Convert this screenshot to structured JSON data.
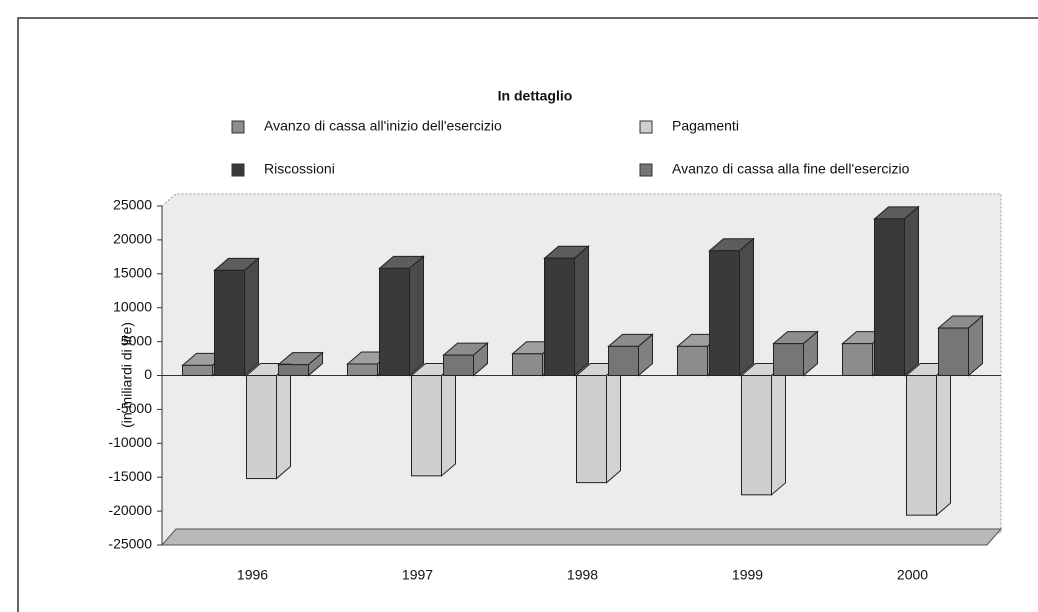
{
  "chart_data": {
    "type": "bar3d",
    "title": "In dettaglio",
    "ylabel": "(in miliardi di lire)",
    "categories": [
      "1996",
      "1997",
      "1998",
      "1999",
      "2000"
    ],
    "series": [
      {
        "name": "Avanzo di cassa all'inizio dell'esercizio",
        "color": "#8c8c8c",
        "values": [
          1500,
          1700,
          3200,
          4300,
          4700
        ]
      },
      {
        "name": "Pagamenti",
        "color": "#cfcfcf",
        "values": [
          -15200,
          -14800,
          -15800,
          -17600,
          -20600
        ]
      },
      {
        "name": "Riscossioni",
        "color": "#3a3a3a",
        "values": [
          15500,
          15800,
          17300,
          18400,
          23100
        ]
      },
      {
        "name": "Avanzo di cassa alla fine dell'esercizio",
        "color": "#767676",
        "values": [
          1600,
          3000,
          4300,
          4700,
          7000
        ]
      }
    ],
    "bar_order": [
      0,
      2,
      1,
      3
    ],
    "ylim": [
      -25000,
      25000
    ],
    "yticks": [
      -25000,
      -20000,
      -15000,
      -10000,
      -5000,
      0,
      5000,
      10000,
      15000,
      20000,
      25000
    ],
    "legend": "top"
  }
}
